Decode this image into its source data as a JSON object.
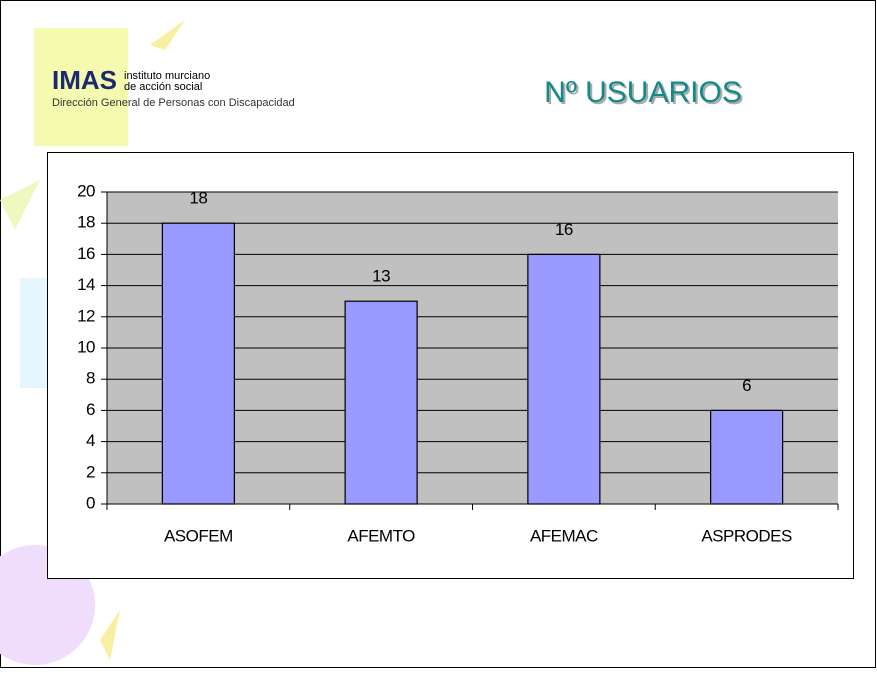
{
  "logo": {
    "brand": "IMAS",
    "line1": "instituto murciano",
    "line2": "de acción social",
    "subtitle": "Dirección General de Personas con Discapacidad"
  },
  "chart_data": {
    "type": "bar",
    "title": "Nº USUARIOS",
    "categories": [
      "ASOFEM",
      "AFEMTO",
      "AFEMAC",
      "ASPRODES"
    ],
    "values": [
      18,
      13,
      16,
      6
    ],
    "color": "#9999ff",
    "ylim": [
      0,
      20
    ],
    "yticks": [
      0,
      2,
      4,
      6,
      8,
      10,
      12,
      14,
      16,
      18,
      20
    ],
    "grid": true
  }
}
